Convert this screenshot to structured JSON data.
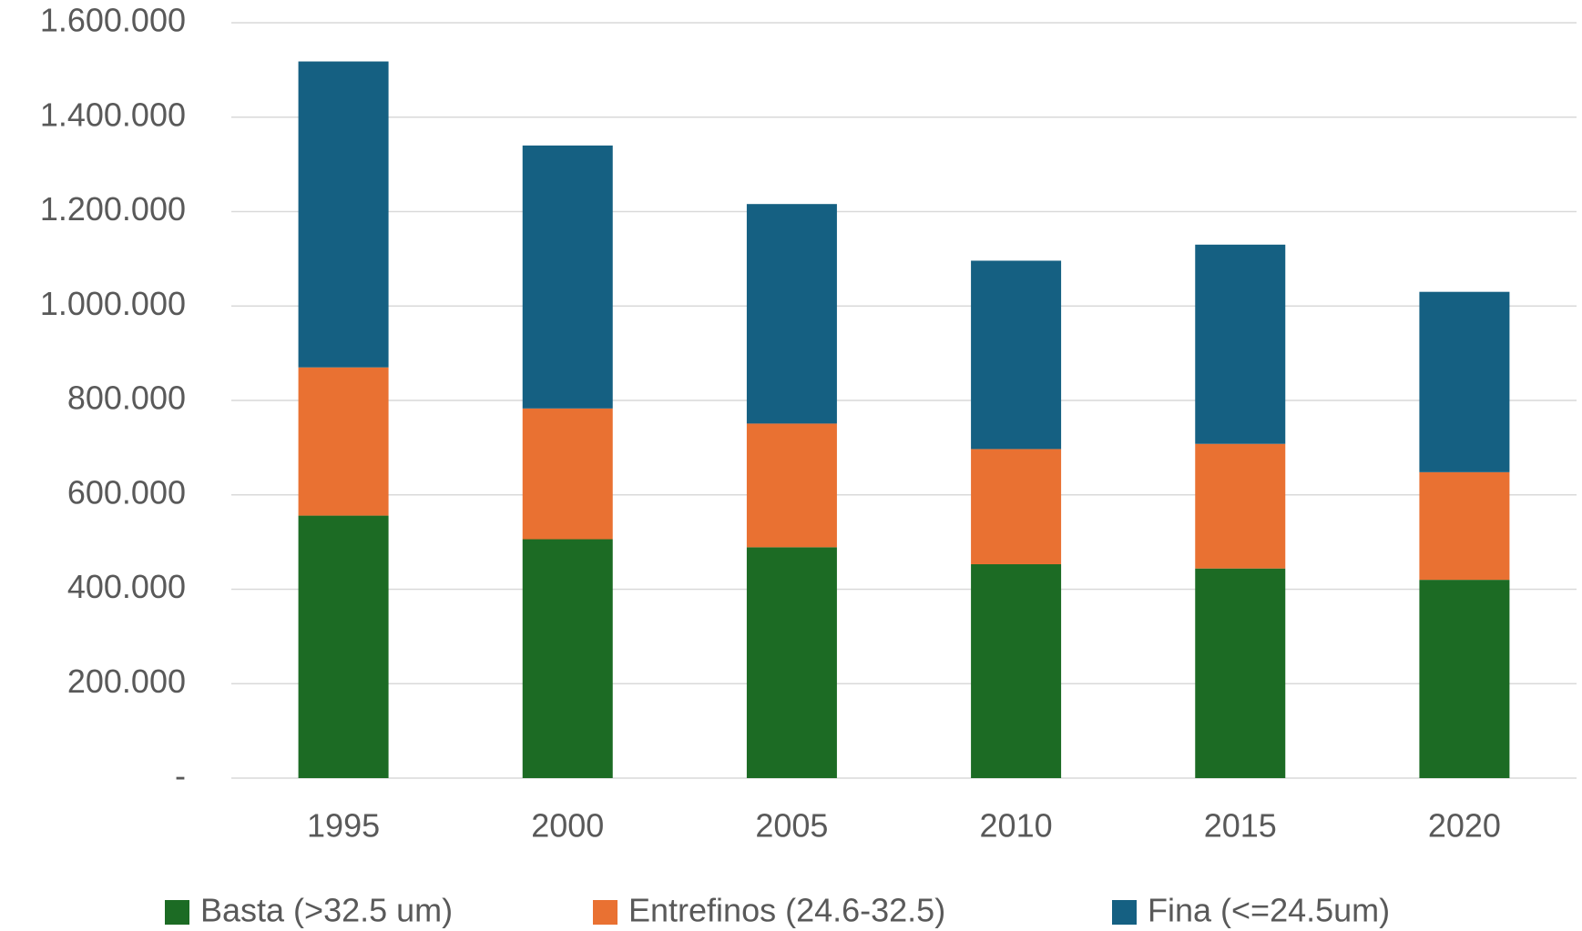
{
  "chart_data": {
    "type": "stacked_bar",
    "categories": [
      "1995",
      "2000",
      "2005",
      "2010",
      "2015",
      "2020"
    ],
    "series": [
      {
        "name": "Basta (>32.5 um)",
        "color": "#1c6b24",
        "values": [
          556000,
          506000,
          489000,
          453000,
          444000,
          420000
        ]
      },
      {
        "name": "Entrefinos (24.6-32.5)",
        "color": "#e97132",
        "values": [
          314000,
          277000,
          262000,
          244000,
          264000,
          228000
        ]
      },
      {
        "name": "Fina (<=24.5um)",
        "color": "#156082",
        "values": [
          648000,
          557000,
          465000,
          399000,
          422000,
          382000
        ]
      }
    ],
    "ylim": [
      0,
      1600000
    ],
    "yticks": [
      {
        "value": 0,
        "label": "-"
      },
      {
        "value": 200000,
        "label": "200.000"
      },
      {
        "value": 400000,
        "label": "400.000"
      },
      {
        "value": 600000,
        "label": "600.000"
      },
      {
        "value": 800000,
        "label": "800.000"
      },
      {
        "value": 1000000,
        "label": "1.000.000"
      },
      {
        "value": 1200000,
        "label": "1.200.000"
      },
      {
        "value": 1400000,
        "label": "1.400.000"
      },
      {
        "value": 1600000,
        "label": "1.600.000"
      }
    ],
    "grid": true,
    "legend": "bottom"
  }
}
